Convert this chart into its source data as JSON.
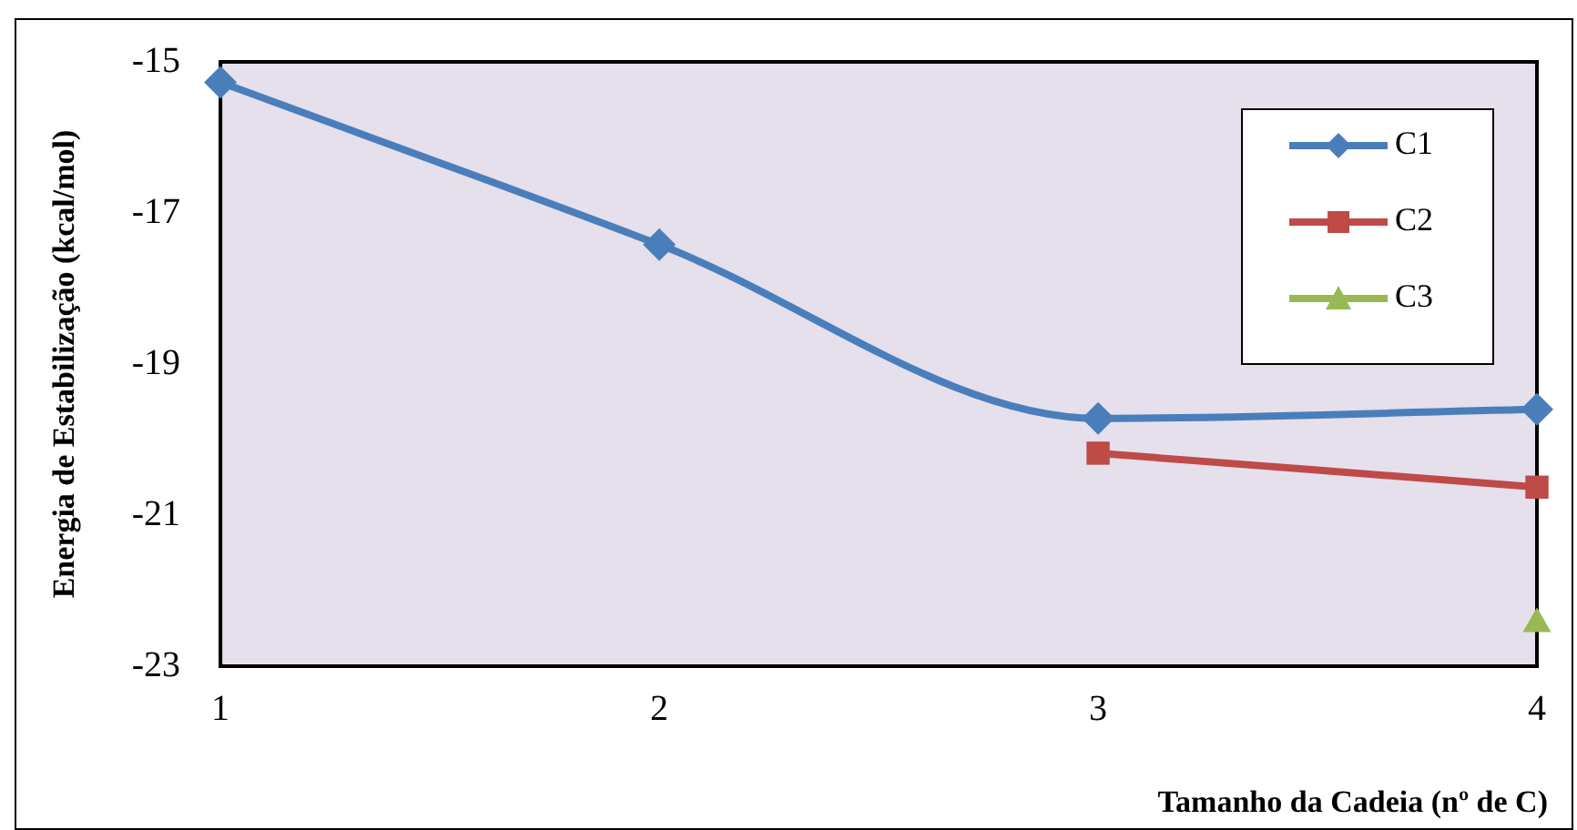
{
  "chart_data": {
    "type": "line",
    "xlabel": "Tamanho da Cadeia (nº de C)",
    "ylabel": "Energia de Estabilização (kcal/mol)",
    "xlim": [
      1,
      4
    ],
    "xticks": [
      1,
      2,
      3,
      4
    ],
    "ylim": [
      -23,
      -15
    ],
    "yticks": [
      -15,
      -17,
      -19,
      -21,
      -23
    ],
    "series": [
      {
        "name": "C1",
        "color": "#4a7ebb",
        "marker": "diamond",
        "x": [
          1,
          2,
          3,
          4
        ],
        "values": [
          -15.27,
          -17.42,
          -19.72,
          -19.6
        ]
      },
      {
        "name": "C2",
        "color": "#be4b48",
        "marker": "square",
        "x": [
          3,
          4
        ],
        "values": [
          -20.18,
          -20.63
        ]
      },
      {
        "name": "C3",
        "color": "#98b954",
        "marker": "triangle",
        "x": [
          4
        ],
        "values": [
          -22.44
        ]
      }
    ],
    "grid": false,
    "legend": "top right"
  }
}
